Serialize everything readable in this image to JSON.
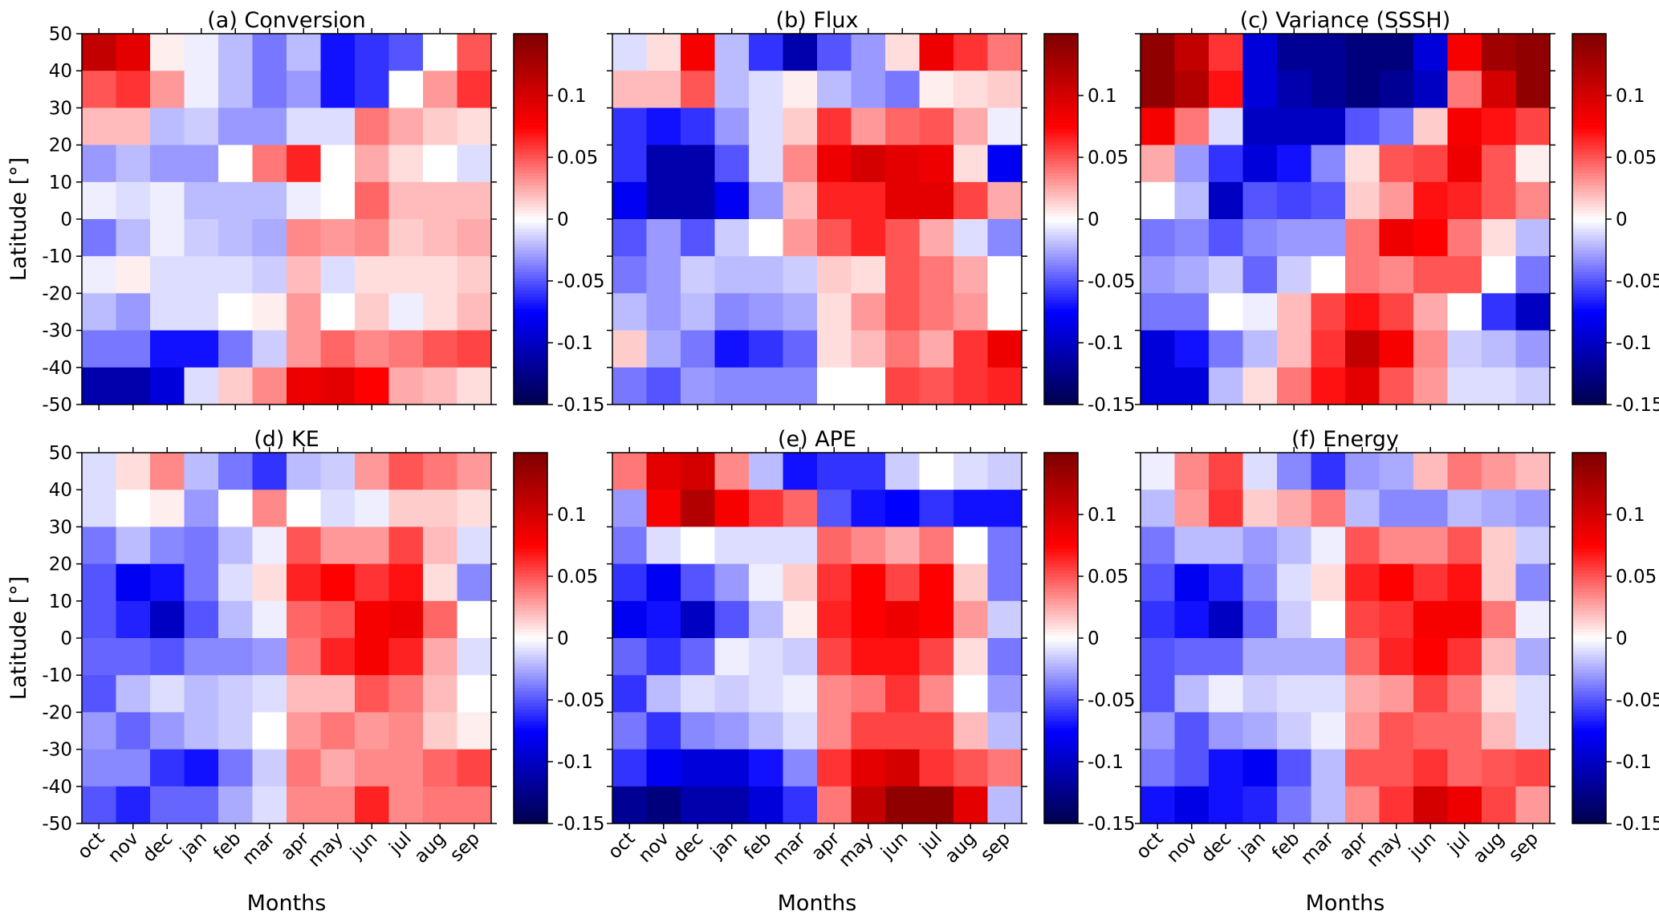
{
  "chart_data": [
    {
      "type": "heatmap",
      "title": "(a) Conversion",
      "ylabel": "Latitude [°]",
      "cmap": "seismic",
      "ylim": [
        -50,
        50
      ],
      "yticks": [
        -50,
        -40,
        -30,
        -20,
        -10,
        0,
        10,
        20,
        30,
        40,
        50
      ],
      "y_edges": [
        50,
        40,
        30,
        20,
        10,
        0,
        -10,
        -20,
        -30,
        -40,
        -50
      ],
      "values": [
        [
          0.11,
          0.09,
          0.005,
          -0.005,
          -0.02,
          -0.04,
          -0.02,
          -0.07,
          -0.06,
          -0.05,
          0.0,
          0.05
        ],
        [
          0.05,
          0.06,
          0.03,
          -0.005,
          -0.02,
          -0.04,
          -0.03,
          -0.07,
          -0.06,
          0.0,
          0.03,
          0.06
        ],
        [
          0.02,
          0.02,
          -0.02,
          -0.015,
          -0.03,
          -0.03,
          -0.01,
          -0.01,
          0.04,
          0.025,
          0.015,
          0.01
        ],
        [
          -0.03,
          -0.02,
          -0.03,
          -0.03,
          0.0,
          0.04,
          0.065,
          0.0,
          0.025,
          0.01,
          0.0,
          -0.01
        ],
        [
          -0.005,
          -0.01,
          -0.005,
          -0.02,
          -0.02,
          -0.02,
          -0.005,
          0.0,
          0.045,
          0.02,
          0.02,
          0.02
        ],
        [
          -0.04,
          -0.02,
          -0.005,
          -0.015,
          -0.02,
          -0.025,
          0.035,
          0.03,
          0.035,
          0.015,
          0.02,
          0.025
        ],
        [
          -0.005,
          0.005,
          -0.01,
          -0.01,
          -0.01,
          -0.015,
          0.02,
          -0.01,
          0.01,
          0.01,
          0.01,
          0.015
        ],
        [
          -0.02,
          -0.03,
          -0.01,
          -0.01,
          0.0,
          0.005,
          0.03,
          0.0,
          0.015,
          -0.005,
          0.01,
          0.02
        ],
        [
          -0.04,
          -0.04,
          -0.07,
          -0.07,
          -0.04,
          -0.015,
          0.03,
          0.045,
          0.035,
          0.04,
          0.05,
          0.055
        ],
        [
          -0.11,
          -0.11,
          -0.09,
          -0.01,
          0.015,
          0.035,
          0.085,
          0.09,
          0.075,
          0.025,
          0.02,
          0.01
        ]
      ],
      "colorbar": {
        "clim": [
          -0.15,
          0.15
        ],
        "ticks": [
          -0.15,
          -0.1,
          -0.05,
          0,
          0.05,
          0.1
        ]
      }
    },
    {
      "type": "heatmap",
      "title": "(b) Flux",
      "cmap": "seismic",
      "ylim": [
        -50,
        50
      ],
      "y_edges": [
        50,
        40,
        30,
        20,
        10,
        0,
        -10,
        -20,
        -30,
        -40,
        -50
      ],
      "values": [
        [
          -0.01,
          0.01,
          0.08,
          -0.02,
          -0.06,
          -0.11,
          -0.05,
          -0.03,
          0.01,
          0.085,
          0.06,
          0.04
        ],
        [
          0.02,
          0.02,
          0.05,
          -0.02,
          -0.01,
          0.005,
          -0.02,
          -0.03,
          -0.04,
          0.005,
          0.01,
          0.015
        ],
        [
          -0.06,
          -0.07,
          -0.06,
          -0.03,
          -0.01,
          0.015,
          0.06,
          0.03,
          0.045,
          0.05,
          0.025,
          -0.005
        ],
        [
          -0.06,
          -0.11,
          -0.11,
          -0.05,
          -0.01,
          0.035,
          0.085,
          0.1,
          0.09,
          0.085,
          0.01,
          -0.08
        ],
        [
          -0.08,
          -0.11,
          -0.11,
          -0.08,
          -0.03,
          0.02,
          0.065,
          0.065,
          0.09,
          0.09,
          0.055,
          0.025
        ],
        [
          -0.05,
          -0.03,
          -0.05,
          -0.015,
          0.0,
          0.03,
          0.05,
          0.065,
          0.05,
          0.025,
          -0.01,
          -0.035
        ],
        [
          -0.04,
          -0.03,
          -0.015,
          -0.02,
          -0.02,
          -0.015,
          0.015,
          0.01,
          0.05,
          0.04,
          0.025,
          0.0
        ],
        [
          -0.02,
          -0.03,
          -0.02,
          -0.035,
          -0.03,
          -0.025,
          0.01,
          0.03,
          0.05,
          0.04,
          0.03,
          0.0
        ],
        [
          0.015,
          -0.025,
          -0.04,
          -0.07,
          -0.06,
          -0.045,
          0.01,
          0.02,
          0.04,
          0.025,
          0.06,
          0.085
        ],
        [
          -0.04,
          -0.05,
          -0.03,
          -0.035,
          -0.035,
          -0.035,
          0.0,
          0.0,
          0.055,
          0.05,
          0.06,
          0.065
        ]
      ],
      "colorbar": {
        "clim": [
          -0.15,
          0.15
        ],
        "ticks": [
          -0.15,
          -0.1,
          -0.05,
          0,
          0.05,
          0.1
        ]
      }
    },
    {
      "type": "heatmap",
      "title": "(c) Variance (SSSH)",
      "cmap": "seismic",
      "ylim": [
        -50,
        50
      ],
      "y_edges": [
        50,
        40,
        30,
        20,
        10,
        0,
        -10,
        -20,
        -30,
        -40,
        -50
      ],
      "values": [
        [
          0.14,
          0.11,
          0.06,
          -0.09,
          -0.12,
          -0.12,
          -0.13,
          -0.13,
          -0.09,
          0.08,
          0.13,
          0.14
        ],
        [
          0.14,
          0.12,
          0.07,
          -0.09,
          -0.11,
          -0.12,
          -0.13,
          -0.12,
          -0.1,
          0.04,
          0.1,
          0.14
        ],
        [
          0.08,
          0.04,
          -0.01,
          -0.1,
          -0.1,
          -0.1,
          -0.05,
          -0.04,
          0.015,
          0.08,
          0.07,
          0.055
        ],
        [
          0.025,
          -0.03,
          -0.06,
          -0.09,
          -0.07,
          -0.035,
          0.01,
          0.05,
          0.055,
          0.085,
          0.05,
          0.005
        ],
        [
          0.0,
          -0.02,
          -0.1,
          -0.05,
          -0.055,
          -0.05,
          0.015,
          0.03,
          0.07,
          0.065,
          0.05,
          0.035
        ],
        [
          -0.04,
          -0.035,
          -0.05,
          -0.035,
          -0.03,
          -0.03,
          0.04,
          0.085,
          0.075,
          0.04,
          0.01,
          -0.02
        ],
        [
          -0.03,
          -0.025,
          -0.015,
          -0.045,
          -0.015,
          0.0,
          0.04,
          0.035,
          0.05,
          0.05,
          0.0,
          -0.04
        ],
        [
          -0.04,
          -0.04,
          0.0,
          -0.005,
          0.02,
          0.055,
          0.07,
          0.055,
          0.025,
          0.0,
          -0.06,
          -0.1
        ],
        [
          -0.09,
          -0.07,
          -0.04,
          -0.02,
          0.02,
          0.06,
          0.11,
          0.08,
          0.035,
          -0.015,
          -0.02,
          -0.03
        ],
        [
          -0.09,
          -0.09,
          -0.02,
          0.01,
          0.04,
          0.07,
          0.09,
          0.05,
          0.03,
          -0.01,
          -0.01,
          -0.015
        ]
      ],
      "colorbar": {
        "clim": [
          -0.15,
          0.15
        ],
        "ticks": [
          -0.15,
          -0.1,
          -0.05,
          0,
          0.05,
          0.1
        ]
      }
    },
    {
      "type": "heatmap",
      "title": "(d) KE",
      "ylabel": "Latitude [°]",
      "xlabel": "Months",
      "cmap": "seismic",
      "categories": [
        "oct",
        "nov",
        "dec",
        "jan",
        "feb",
        "mar",
        "apr",
        "may",
        "jun",
        "jul",
        "aug",
        "sep"
      ],
      "ylim": [
        -50,
        50
      ],
      "yticks": [
        -50,
        -40,
        -30,
        -20,
        -10,
        0,
        10,
        20,
        30,
        40,
        50
      ],
      "y_edges": [
        50,
        40,
        30,
        20,
        10,
        0,
        -10,
        -20,
        -30,
        -40,
        -50
      ],
      "values": [
        [
          -0.01,
          0.01,
          0.035,
          -0.02,
          -0.04,
          -0.06,
          -0.02,
          -0.015,
          0.03,
          0.05,
          0.04,
          0.03
        ],
        [
          -0.01,
          0.0,
          0.005,
          -0.03,
          0.0,
          0.035,
          0.0,
          -0.01,
          -0.005,
          0.015,
          0.015,
          0.01
        ],
        [
          -0.04,
          -0.02,
          -0.035,
          -0.04,
          -0.02,
          -0.005,
          0.05,
          0.03,
          0.03,
          0.055,
          0.02,
          -0.01
        ],
        [
          -0.05,
          -0.08,
          -0.07,
          -0.04,
          -0.01,
          0.01,
          0.065,
          0.075,
          0.06,
          0.07,
          0.01,
          -0.035
        ],
        [
          -0.05,
          -0.065,
          -0.1,
          -0.05,
          -0.02,
          -0.005,
          0.045,
          0.05,
          0.08,
          0.085,
          0.045,
          0.0
        ],
        [
          -0.045,
          -0.045,
          -0.05,
          -0.035,
          -0.035,
          -0.03,
          0.04,
          0.065,
          0.08,
          0.065,
          0.025,
          -0.01
        ],
        [
          -0.05,
          -0.02,
          -0.01,
          -0.02,
          -0.015,
          -0.01,
          0.02,
          0.02,
          0.05,
          0.04,
          0.02,
          0.0
        ],
        [
          -0.03,
          -0.045,
          -0.03,
          -0.02,
          -0.015,
          0.0,
          0.03,
          0.04,
          0.03,
          0.035,
          0.015,
          0.005
        ],
        [
          -0.035,
          -0.035,
          -0.06,
          -0.07,
          -0.04,
          -0.015,
          0.04,
          0.025,
          0.035,
          0.035,
          0.045,
          0.055
        ],
        [
          -0.05,
          -0.065,
          -0.045,
          -0.045,
          -0.025,
          -0.01,
          0.035,
          0.035,
          0.065,
          0.035,
          0.04,
          0.04
        ]
      ],
      "colorbar": {
        "clim": [
          -0.15,
          0.15
        ],
        "ticks": [
          -0.15,
          -0.1,
          -0.05,
          0,
          0.05,
          0.1
        ]
      }
    },
    {
      "type": "heatmap",
      "title": "(e) APE",
      "xlabel": "Months",
      "cmap": "seismic",
      "categories": [
        "oct",
        "nov",
        "dec",
        "jan",
        "feb",
        "mar",
        "apr",
        "may",
        "jun",
        "jul",
        "aug",
        "sep"
      ],
      "ylim": [
        -50,
        50
      ],
      "y_edges": [
        50,
        40,
        30,
        20,
        10,
        0,
        -10,
        -20,
        -30,
        -40,
        -50
      ],
      "values": [
        [
          0.04,
          0.09,
          0.1,
          0.035,
          -0.02,
          -0.07,
          -0.06,
          -0.06,
          -0.015,
          0.0,
          -0.01,
          -0.015
        ],
        [
          -0.03,
          0.08,
          0.12,
          0.08,
          0.06,
          0.045,
          -0.05,
          -0.07,
          -0.075,
          -0.06,
          -0.07,
          -0.07
        ],
        [
          -0.04,
          -0.01,
          0.0,
          -0.01,
          -0.01,
          -0.01,
          0.045,
          0.035,
          0.025,
          0.04,
          0.0,
          -0.04
        ],
        [
          -0.06,
          -0.08,
          -0.05,
          -0.03,
          -0.005,
          0.015,
          0.06,
          0.075,
          0.055,
          0.075,
          0.015,
          -0.04
        ],
        [
          -0.08,
          -0.07,
          -0.1,
          -0.05,
          -0.02,
          0.005,
          0.065,
          0.075,
          0.085,
          0.075,
          0.03,
          -0.015
        ],
        [
          -0.045,
          -0.06,
          -0.045,
          -0.005,
          -0.01,
          -0.015,
          0.055,
          0.07,
          0.07,
          0.055,
          0.01,
          -0.04
        ],
        [
          -0.06,
          -0.02,
          -0.01,
          -0.015,
          -0.01,
          -0.005,
          0.035,
          0.04,
          0.06,
          0.035,
          0.0,
          -0.03
        ],
        [
          -0.04,
          -0.06,
          -0.035,
          -0.03,
          -0.02,
          -0.01,
          0.035,
          0.055,
          0.055,
          0.055,
          0.02,
          -0.02
        ],
        [
          -0.06,
          -0.08,
          -0.09,
          -0.09,
          -0.07,
          -0.035,
          0.06,
          0.09,
          0.1,
          0.06,
          0.05,
          0.04
        ],
        [
          -0.12,
          -0.13,
          -0.11,
          -0.11,
          -0.09,
          -0.06,
          0.04,
          0.11,
          0.14,
          0.14,
          0.09,
          -0.02
        ]
      ],
      "colorbar": {
        "clim": [
          -0.15,
          0.15
        ],
        "ticks": [
          -0.15,
          -0.1,
          -0.05,
          0,
          0.05,
          0.1
        ]
      }
    },
    {
      "type": "heatmap",
      "title": "(f) Energy",
      "xlabel": "Months",
      "cmap": "seismic",
      "categories": [
        "oct",
        "nov",
        "dec",
        "jan",
        "feb",
        "mar",
        "apr",
        "may",
        "jun",
        "jul",
        "aug",
        "sep"
      ],
      "ylim": [
        -50,
        50
      ],
      "y_edges": [
        50,
        40,
        30,
        20,
        10,
        0,
        -10,
        -20,
        -30,
        -40,
        -50
      ],
      "values": [
        [
          -0.005,
          0.035,
          0.055,
          -0.01,
          -0.035,
          -0.06,
          -0.03,
          -0.025,
          0.02,
          0.04,
          0.03,
          0.02
        ],
        [
          -0.02,
          0.03,
          0.06,
          0.015,
          0.025,
          0.04,
          -0.02,
          -0.035,
          -0.035,
          -0.02,
          -0.025,
          -0.03
        ],
        [
          -0.04,
          -0.02,
          -0.02,
          -0.03,
          -0.02,
          -0.005,
          0.05,
          0.035,
          0.035,
          0.05,
          0.015,
          -0.015
        ],
        [
          -0.05,
          -0.08,
          -0.065,
          -0.035,
          -0.01,
          0.01,
          0.065,
          0.075,
          0.06,
          0.07,
          0.015,
          -0.035
        ],
        [
          -0.06,
          -0.07,
          -0.1,
          -0.045,
          -0.015,
          0.0,
          0.055,
          0.06,
          0.08,
          0.08,
          0.04,
          -0.005
        ],
        [
          -0.05,
          -0.045,
          -0.045,
          -0.025,
          -0.025,
          -0.025,
          0.045,
          0.065,
          0.075,
          0.06,
          0.02,
          -0.025
        ],
        [
          -0.05,
          -0.02,
          -0.005,
          -0.015,
          -0.01,
          -0.01,
          0.025,
          0.03,
          0.055,
          0.04,
          0.01,
          -0.01
        ],
        [
          -0.03,
          -0.05,
          -0.03,
          -0.025,
          -0.015,
          -0.005,
          0.03,
          0.05,
          0.045,
          0.045,
          0.02,
          -0.01
        ],
        [
          -0.04,
          -0.05,
          -0.07,
          -0.08,
          -0.05,
          -0.02,
          0.05,
          0.05,
          0.06,
          0.045,
          0.05,
          0.055
        ],
        [
          -0.07,
          -0.085,
          -0.07,
          -0.065,
          -0.04,
          -0.02,
          0.035,
          0.06,
          0.1,
          0.085,
          0.055,
          0.03
        ]
      ],
      "colorbar": {
        "clim": [
          -0.15,
          0.15
        ],
        "ticks": [
          -0.15,
          -0.1,
          -0.05,
          0,
          0.05,
          0.1
        ]
      }
    }
  ]
}
